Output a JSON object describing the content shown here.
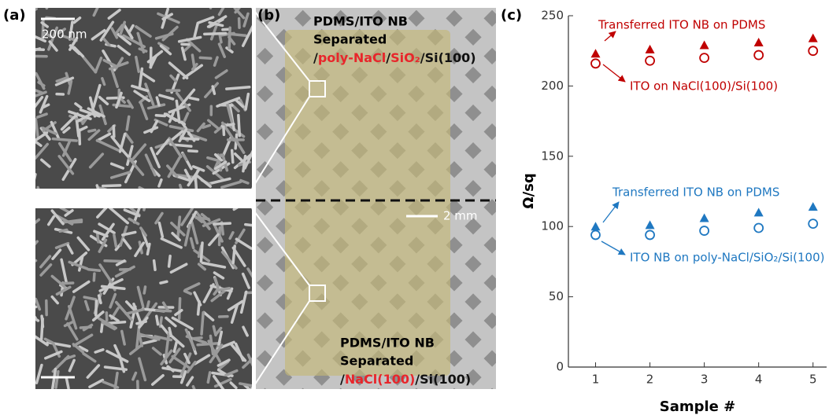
{
  "panels": {
    "a": {
      "label": "(a)",
      "scale_bar": "200 nm"
    },
    "b": {
      "label": "(b)",
      "scale_bar": "2 mm",
      "top_lines": [
        "PDMS/ITO NB",
        "Separated"
      ],
      "top_path": [
        {
          "text": "/",
          "color": "#111111"
        },
        {
          "text": "poly-NaCl",
          "color": "#e8262b"
        },
        {
          "text": "/",
          "color": "#111111"
        },
        {
          "text": "SiO₂",
          "color": "#e8262b"
        },
        {
          "text": "/Si(100)",
          "color": "#111111"
        }
      ],
      "bottom_lines": [
        "PDMS/ITO NB",
        "Separated"
      ],
      "bottom_path": [
        {
          "text": "/",
          "color": "#111111"
        },
        {
          "text": "NaCl(100)",
          "color": "#e8262b"
        },
        {
          "text": "/Si(100)",
          "color": "#111111"
        }
      ]
    }
  },
  "chart_data": {
    "type": "scatter",
    "panel_label": "(c)",
    "ylabel": "Ω/sq",
    "xlabel": "Sample #",
    "x": [
      1,
      2,
      3,
      4,
      5
    ],
    "xlim": [
      0.5,
      5.25
    ],
    "xticks": [
      1,
      2,
      3,
      4,
      5
    ],
    "ylim": [
      0,
      250
    ],
    "yticks": [
      0,
      50,
      100,
      150,
      200,
      250
    ],
    "series": [
      {
        "name": "Transferred ITO NB on PDMS",
        "color": "#c00000",
        "marker": "triangle",
        "values": [
          223,
          226,
          229,
          231,
          234
        ]
      },
      {
        "name": "ITO on NaCl(100)/Si(100)",
        "color": "#c00000",
        "marker": "circle",
        "values": [
          216,
          218,
          220,
          222,
          225
        ]
      },
      {
        "name": "Transferred ITO NB on PDMS",
        "color": "#1f78c1",
        "marker": "triangle",
        "values": [
          100,
          101,
          106,
          110,
          114
        ]
      },
      {
        "name": "ITO NB on poly-NaCl/SiO₂/Si(100)",
        "color": "#1f78c1",
        "marker": "circle",
        "values": [
          94,
          94,
          97,
          99,
          102
        ]
      }
    ]
  }
}
